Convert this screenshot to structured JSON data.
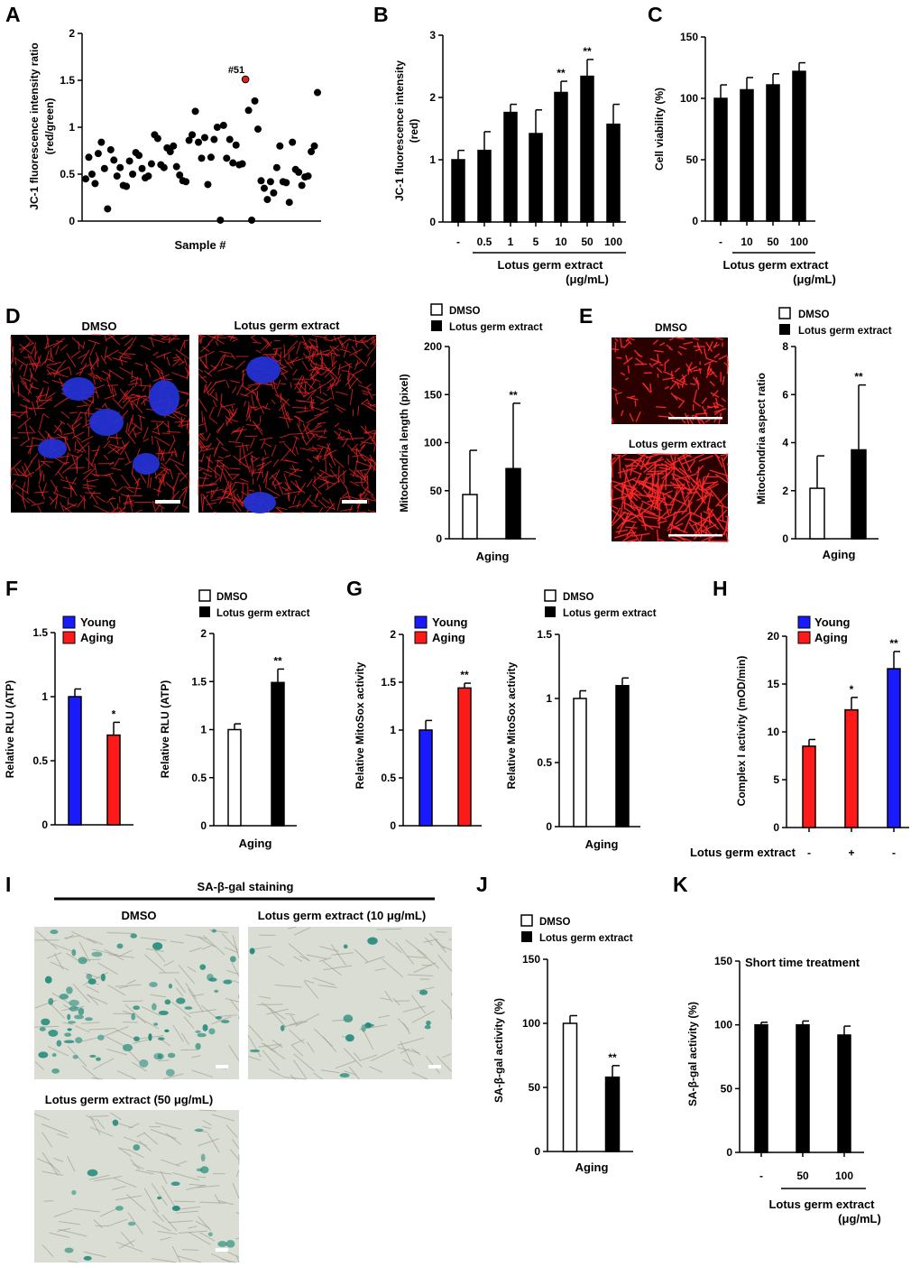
{
  "colors": {
    "black": "#000000",
    "white": "#ffffff",
    "red": "#ff1a1a",
    "blue": "#1a1aff",
    "highlight": "#e02020",
    "micro_bg": "#000000",
    "stain_bg": "#d9ddd3",
    "stain_blue": "#1f8a7a"
  },
  "panels": {
    "A": {
      "letter": "A",
      "ylabel_1": "JC-1 fluorescence intensity ratio",
      "ylabel_2": "(red/green)",
      "xlabel": "Sample #",
      "highlight_label": "#51"
    },
    "B": {
      "letter": "B",
      "ylabel_1": "JC-1 fluorescence intensity",
      "ylabel_2": "(red)",
      "xlabel_1": "Lotus germ extract",
      "xlabel_2": "(μg/mL)"
    },
    "C": {
      "letter": "C",
      "ylabel": "Cell viability (%)",
      "xlabel_1": "Lotus germ extract",
      "xlabel_2": "(μg/mL)"
    },
    "D": {
      "letter": "D",
      "img1_label": "DMSO",
      "img2_label": "Lotus germ extract",
      "legend_1": "DMSO",
      "legend_2": "Lotus germ extract",
      "ylabel": "Mitochondria length (pixel)",
      "xlabel": "Aging"
    },
    "E": {
      "letter": "E",
      "img1_label": "DMSO",
      "img2_label": "Lotus germ extract",
      "legend_1": "DMSO",
      "legend_2": "Lotus germ extract",
      "ylabel": "Mitochondria aspect ratio",
      "xlabel": "Aging"
    },
    "F": {
      "letter": "F",
      "legend_young": "Young",
      "legend_aging": "Aging",
      "ylabel": "Relative RLU (ATP)",
      "legend_1": "DMSO",
      "legend_2": "Lotus germ extract",
      "xlabel": "Aging"
    },
    "G": {
      "letter": "G",
      "legend_young": "Young",
      "legend_aging": "Aging",
      "ylabel": "Relative MitoSox activity",
      "legend_1": "DMSO",
      "legend_2": "Lotus germ extract",
      "xlabel": "Aging"
    },
    "H": {
      "letter": "H",
      "legend_young": "Young",
      "legend_aging": "Aging",
      "ylabel": "Complex I activity (mOD/min)",
      "row_label": "Lotus germ extract"
    },
    "I": {
      "letter": "I",
      "title": "SA-β-gal staining",
      "img1_label": "DMSO",
      "img2_label": "Lotus germ extract (10 μg/mL)",
      "img3_label": "Lotus germ extract (50 μg/mL)"
    },
    "J": {
      "letter": "J",
      "legend_1": "DMSO",
      "legend_2": "Lotus germ extract",
      "ylabel": "SA-β-gal activity (%)",
      "xlabel": "Aging"
    },
    "K": {
      "letter": "K",
      "title": "Short time treatment",
      "ylabel": "SA-β-gal activity (%)",
      "xlabel_1": "Lotus germ extract",
      "xlabel_2": "(μg/mL)"
    }
  },
  "chart_data": [
    {
      "panel": "A",
      "type": "scatter",
      "ylim": [
        0,
        2
      ],
      "yticks": [
        "0",
        "0.5",
        "1",
        "1.5",
        "2"
      ],
      "xlabel": "Sample #",
      "highlight_index": 52,
      "x": [
        1,
        2,
        3,
        4,
        5,
        6,
        7,
        8,
        9,
        10,
        11,
        12,
        13,
        14,
        15,
        16,
        17,
        18,
        19,
        20,
        21,
        22,
        23,
        24,
        25,
        26,
        27,
        28,
        29,
        30,
        31,
        32,
        33,
        34,
        35,
        36,
        37,
        38,
        39,
        40,
        41,
        42,
        43,
        44,
        45,
        46,
        47,
        48,
        49,
        50,
        51,
        52,
        53,
        54,
        55,
        56,
        57,
        58,
        59,
        60,
        61,
        62,
        63,
        64,
        65,
        66,
        67,
        68,
        69,
        70,
        71,
        72,
        73,
        74,
        75
      ],
      "y": [
        0.45,
        0.68,
        0.5,
        0.4,
        0.72,
        0.84,
        0.56,
        0.13,
        0.76,
        0.65,
        0.48,
        0.57,
        0.38,
        0.37,
        0.64,
        0.5,
        0.73,
        0.7,
        0.56,
        0.46,
        0.48,
        0.61,
        0.92,
        0.88,
        0.6,
        0.57,
        0.78,
        0.74,
        0.8,
        0.58,
        0.49,
        0.43,
        0.42,
        0.86,
        0.92,
        1.17,
        0.84,
        0.67,
        0.89,
        0.39,
        0.68,
        0.87,
        1.0,
        0.01,
        1.02,
        0.67,
        0.87,
        0.62,
        0.81,
        0.6,
        0.61,
        1.51,
        1.18,
        0.01,
        1.28,
        0.98,
        0.43,
        0.35,
        0.23,
        0.42,
        0.3,
        0.57,
        0.8,
        0.42,
        0.41,
        0.2,
        0.84,
        0.55,
        0.52,
        0.38,
        0.47,
        0.48,
        0.74,
        0.8,
        1.37
      ]
    },
    {
      "panel": "B",
      "type": "bar",
      "categories": [
        "-",
        "0.5",
        "1",
        "5",
        "10",
        "50",
        "100"
      ],
      "values": [
        1.0,
        1.15,
        1.76,
        1.42,
        2.08,
        2.34,
        1.57
      ],
      "errors": [
        0.15,
        0.3,
        0.13,
        0.38,
        0.18,
        0.27,
        0.32
      ],
      "sig": [
        "",
        "",
        "",
        "",
        "**",
        "**",
        ""
      ],
      "ylim": [
        0,
        3
      ],
      "yticks": [
        "0",
        "1",
        "2",
        "3"
      ]
    },
    {
      "panel": "C",
      "type": "bar",
      "categories": [
        "-",
        "10",
        "50",
        "100"
      ],
      "values": [
        100,
        107,
        111,
        122
      ],
      "errors": [
        11,
        10,
        9,
        7
      ],
      "ylim": [
        0,
        150
      ],
      "yticks": [
        "0",
        "50",
        "100",
        "150"
      ]
    },
    {
      "panel": "D",
      "type": "bar",
      "categories": [
        "DMSO",
        "Lotus germ extract"
      ],
      "values": [
        46,
        73
      ],
      "errors": [
        46,
        68
      ],
      "sig": [
        "",
        "**"
      ],
      "fills": [
        "white",
        "black"
      ],
      "ylim": [
        0,
        200
      ],
      "yticks": [
        "0",
        "50",
        "100",
        "150",
        "200"
      ]
    },
    {
      "panel": "E",
      "type": "bar",
      "categories": [
        "DMSO",
        "Lotus germ extract"
      ],
      "values": [
        2.1,
        3.7
      ],
      "errors": [
        1.35,
        2.7
      ],
      "sig": [
        "",
        "**"
      ],
      "fills": [
        "white",
        "black"
      ],
      "ylim": [
        0,
        8
      ],
      "yticks": [
        "0",
        "2",
        "4",
        "6",
        "8"
      ]
    },
    {
      "panel": "F1",
      "type": "bar",
      "categories": [
        "Young",
        "Aging"
      ],
      "values": [
        1.0,
        0.7
      ],
      "errors": [
        0.06,
        0.1
      ],
      "sig": [
        "",
        "*"
      ],
      "fills": [
        "blue",
        "red"
      ],
      "ylim": [
        0,
        1.5
      ],
      "yticks": [
        "0",
        "0.5",
        "1",
        "1.5"
      ]
    },
    {
      "panel": "F2",
      "type": "bar",
      "categories": [
        "DMSO",
        "Lotus germ extract"
      ],
      "values": [
        1.0,
        1.49
      ],
      "errors": [
        0.06,
        0.14
      ],
      "sig": [
        "",
        "**"
      ],
      "fills": [
        "white",
        "black"
      ],
      "ylim": [
        0,
        2
      ],
      "yticks": [
        "0",
        "0.5",
        "1",
        "1.5",
        "2"
      ]
    },
    {
      "panel": "G1",
      "type": "bar",
      "categories": [
        "Young",
        "Aging"
      ],
      "values": [
        1.0,
        1.44
      ],
      "errors": [
        0.1,
        0.05
      ],
      "sig": [
        "",
        "**"
      ],
      "fills": [
        "blue",
        "red"
      ],
      "ylim": [
        0,
        2
      ],
      "yticks": [
        "0",
        "0.5",
        "1",
        "1.5",
        "2"
      ]
    },
    {
      "panel": "G2",
      "type": "bar",
      "categories": [
        "DMSO",
        "Lotus germ extract"
      ],
      "values": [
        1.0,
        1.1
      ],
      "errors": [
        0.06,
        0.06
      ],
      "sig": [
        "",
        ""
      ],
      "fills": [
        "white",
        "black"
      ],
      "ylim": [
        0,
        1.5
      ],
      "yticks": [
        "0",
        "0.5",
        "1",
        "1.5"
      ]
    },
    {
      "panel": "H",
      "type": "bar",
      "categories": [
        "-",
        "+",
        "-"
      ],
      "values": [
        8.5,
        12.3,
        16.6
      ],
      "errors": [
        0.7,
        1.3,
        1.8
      ],
      "sig": [
        "",
        "*",
        "**"
      ],
      "fills": [
        "red",
        "red",
        "blue"
      ],
      "ylim": [
        0,
        20
      ],
      "yticks": [
        "0",
        "5",
        "10",
        "15",
        "20"
      ]
    },
    {
      "panel": "J",
      "type": "bar",
      "categories": [
        "DMSO",
        "Lotus germ extract"
      ],
      "values": [
        100,
        58
      ],
      "errors": [
        6,
        9
      ],
      "sig": [
        "",
        "**"
      ],
      "fills": [
        "white",
        "black"
      ],
      "ylim": [
        0,
        150
      ],
      "yticks": [
        "0",
        "50",
        "100",
        "150"
      ]
    },
    {
      "panel": "K",
      "type": "bar",
      "categories": [
        "-",
        "50",
        "100"
      ],
      "values": [
        100,
        100,
        92
      ],
      "errors": [
        2,
        3,
        7
      ],
      "sig": [
        "",
        "",
        ""
      ],
      "fills": [
        "black",
        "black",
        "black"
      ],
      "ylim": [
        0,
        150
      ],
      "yticks": [
        "0",
        "50",
        "100",
        "150"
      ]
    }
  ]
}
